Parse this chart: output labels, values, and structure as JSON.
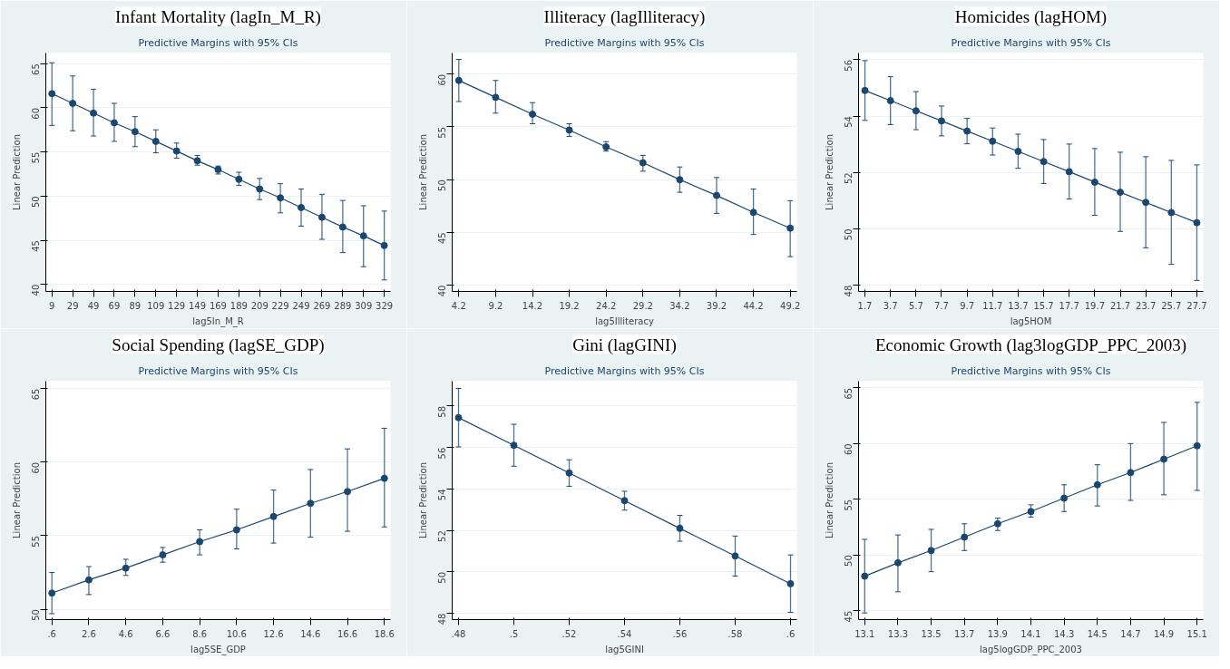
{
  "chart_data": [
    {
      "type": "line",
      "title": "Infant Mortality (lagIn_M_R)",
      "subtitle": "Predictive Margins with 95% CIs",
      "xlabel": "lag5In_M_R",
      "ylabel": "Linear Prediction",
      "marker": "circle",
      "grid": "y",
      "xlim": [
        3.1,
        335
      ],
      "xticks": [
        9,
        29,
        49,
        69,
        89,
        109,
        129,
        149,
        169,
        189,
        209,
        229,
        249,
        269,
        289,
        309,
        329
      ],
      "ylim": [
        39.2,
        66.2
      ],
      "yticks": [
        40,
        45,
        50,
        55,
        60,
        65
      ],
      "x": [
        9,
        29,
        49,
        69,
        89,
        109,
        129,
        149,
        169,
        189,
        209,
        229,
        249,
        269,
        289,
        309,
        329
      ],
      "series": [
        {
          "color": "#1a476f",
          "values": [
            61.6,
            60.5,
            59.4,
            58.3,
            57.3,
            56.2,
            55.1,
            54.0,
            53.0,
            51.9,
            50.8,
            49.8,
            48.7,
            47.6,
            46.5,
            45.5,
            44.4
          ],
          "errors": [
            [
              58.0,
              65.1
            ],
            [
              57.4,
              63.6
            ],
            [
              56.8,
              62.1
            ],
            [
              56.2,
              60.5
            ],
            [
              55.6,
              59.0
            ],
            [
              54.9,
              57.5
            ],
            [
              54.3,
              56.0
            ],
            [
              53.5,
              54.6
            ],
            [
              52.5,
              53.4
            ],
            [
              51.2,
              52.7
            ],
            [
              49.6,
              52.0
            ],
            [
              48.1,
              51.4
            ],
            [
              46.6,
              50.8
            ],
            [
              45.1,
              50.2
            ],
            [
              43.6,
              49.5
            ],
            [
              42.0,
              48.9
            ],
            [
              40.5,
              48.3
            ]
          ]
        }
      ]
    },
    {
      "type": "line",
      "title": "Illiteracy (lagIlliteracy)",
      "subtitle": "Predictive Margins with 95% CIs",
      "xlabel": "lag5Illiteracy",
      "ylabel": "Linear Prediction",
      "marker": "circle",
      "grid": "y",
      "xlim": [
        3.3,
        50.1
      ],
      "xticks": [
        4.2,
        9.2,
        14.2,
        19.2,
        24.2,
        29.2,
        34.2,
        39.2,
        44.2,
        49.2
      ],
      "ylim": [
        39.4,
        62.0
      ],
      "yticks": [
        40,
        45,
        50,
        55,
        60
      ],
      "x": [
        4.2,
        9.2,
        14.2,
        19.2,
        24.2,
        29.2,
        34.2,
        39.2,
        44.2,
        49.2
      ],
      "series": [
        {
          "color": "#1a476f",
          "values": [
            59.4,
            57.8,
            56.2,
            54.7,
            53.1,
            51.6,
            50.0,
            48.5,
            46.9,
            45.4
          ],
          "errors": [
            [
              57.4,
              61.4
            ],
            [
              56.3,
              59.4
            ],
            [
              55.3,
              57.3
            ],
            [
              54.1,
              55.3
            ],
            [
              52.7,
              53.6
            ],
            [
              50.8,
              52.3
            ],
            [
              48.8,
              51.2
            ],
            [
              46.8,
              50.2
            ],
            [
              44.8,
              49.1
            ],
            [
              42.7,
              48.0
            ]
          ]
        }
      ]
    },
    {
      "type": "line",
      "title": "Homicides (lagHOM)",
      "subtitle": "Predictive Margins with 95% CIs",
      "xlabel": "lag5HOM",
      "ylabel": "Linear Prediction",
      "marker": "circle",
      "grid": "y",
      "xlim": [
        1.2,
        28.2
      ],
      "xticks": [
        1.7,
        3.7,
        5.7,
        7.7,
        9.7,
        11.7,
        13.7,
        15.7,
        17.7,
        19.7,
        21.7,
        23.7,
        25.7,
        27.7
      ],
      "ylim": [
        47.78,
        56.24
      ],
      "yticks": [
        48,
        50,
        52,
        54,
        56
      ],
      "x": [
        1.7,
        3.7,
        5.7,
        7.7,
        9.7,
        11.7,
        13.7,
        15.7,
        17.7,
        19.7,
        21.7,
        23.7,
        25.7,
        27.7
      ],
      "series": [
        {
          "color": "#1a476f",
          "values": [
            54.91,
            54.55,
            54.19,
            53.83,
            53.47,
            53.11,
            52.75,
            52.39,
            52.03,
            51.66,
            51.3,
            50.94,
            50.58,
            50.22
          ],
          "errors": [
            [
              53.85,
              55.97
            ],
            [
              53.7,
              55.4
            ],
            [
              53.52,
              54.87
            ],
            [
              53.3,
              54.36
            ],
            [
              53.02,
              53.92
            ],
            [
              52.62,
              53.58
            ],
            [
              52.15,
              53.36
            ],
            [
              51.61,
              53.17
            ],
            [
              51.06,
              53.01
            ],
            [
              50.48,
              52.85
            ],
            [
              49.91,
              52.72
            ],
            [
              49.33,
              52.56
            ],
            [
              48.74,
              52.43
            ],
            [
              48.17,
              52.27
            ]
          ]
        }
      ]
    },
    {
      "type": "line",
      "title": "Social Spending (lagSE_GDP)",
      "subtitle": "Predictive Margins with 95% CIs",
      "xlabel": "lag5SE_GDP",
      "ylabel": "Linear Prediction",
      "marker": "circle",
      "grid": "y",
      "xlim": [
        0.27,
        18.93
      ],
      "xticks": [
        {
          "value": 0.6,
          "label": ".6"
        },
        2.6,
        4.6,
        6.6,
        8.6,
        10.6,
        12.6,
        14.6,
        16.6,
        18.6
      ],
      "ylim": [
        49.3,
        65.5
      ],
      "yticks": [
        50,
        55,
        60,
        65
      ],
      "x": [
        0.6,
        2.6,
        4.6,
        6.6,
        8.6,
        10.6,
        12.6,
        14.6,
        16.6,
        18.6
      ],
      "series": [
        {
          "color": "#1a476f",
          "values": [
            51.1,
            52.0,
            52.8,
            53.7,
            54.6,
            55.4,
            56.3,
            57.2,
            58.0,
            58.9
          ],
          "errors": [
            [
              49.7,
              52.5
            ],
            [
              51.0,
              52.9
            ],
            [
              52.3,
              53.4
            ],
            [
              53.2,
              54.2
            ],
            [
              53.7,
              55.4
            ],
            [
              54.1,
              56.8
            ],
            [
              54.5,
              58.1
            ],
            [
              54.9,
              59.5
            ],
            [
              55.3,
              60.9
            ],
            [
              55.6,
              62.3
            ]
          ]
        }
      ]
    },
    {
      "type": "line",
      "title": "Gini (lagGINI)",
      "subtitle": "Predictive Margins with 95% CIs",
      "xlabel": "lag5GINI",
      "ylabel": "Linear Prediction",
      "marker": "circle",
      "grid": "y",
      "xlim": [
        0.4777,
        0.6023
      ],
      "xticks": [
        {
          "value": 0.48,
          "label": ".48"
        },
        {
          "value": 0.5,
          "label": ".5"
        },
        {
          "value": 0.52,
          "label": ".52"
        },
        {
          "value": 0.54,
          "label": ".54"
        },
        {
          "value": 0.56,
          "label": ".56"
        },
        {
          "value": 0.58,
          "label": ".58"
        },
        {
          "value": 0.6,
          "label": ".6"
        }
      ],
      "ylim": [
        47.7,
        59.2
      ],
      "yticks": [
        48,
        50,
        52,
        54,
        56,
        58
      ],
      "x": [
        0.48,
        0.5,
        0.52,
        0.54,
        0.56,
        0.58,
        0.6
      ],
      "series": [
        {
          "color": "#1a476f",
          "values": [
            57.44,
            56.11,
            54.77,
            53.44,
            52.1,
            50.77,
            49.43
          ],
          "errors": [
            [
              56.03,
              58.85
            ],
            [
              55.1,
              57.12
            ],
            [
              54.13,
              55.41
            ],
            [
              52.98,
              53.89
            ],
            [
              51.48,
              52.73
            ],
            [
              49.8,
              51.73
            ],
            [
              48.05,
              50.82
            ]
          ]
        }
      ]
    },
    {
      "type": "line",
      "title": "Economic Growth (lag3logGDP_PPC_2003)",
      "subtitle": "Predictive Margins with 95% CIs",
      "xlabel": "lag5logGDP_PPC_2003",
      "ylabel": "Linear Prediction",
      "marker": "circle",
      "grid": "y",
      "xlim": [
        13.063,
        15.137
      ],
      "xticks": [
        13.1,
        13.3,
        13.5,
        13.7,
        13.9,
        14.1,
        14.3,
        14.5,
        14.7,
        14.9,
        15.1
      ],
      "ylim": [
        44.2,
        65.6
      ],
      "yticks": [
        45,
        50,
        55,
        60,
        65
      ],
      "x": [
        13.1,
        13.3,
        13.5,
        13.7,
        13.9,
        14.1,
        14.3,
        14.5,
        14.7,
        14.9,
        15.1
      ],
      "series": [
        {
          "color": "#1a476f",
          "values": [
            48.1,
            49.3,
            50.4,
            51.6,
            52.8,
            53.9,
            55.1,
            56.3,
            57.4,
            58.6,
            59.8
          ],
          "errors": [
            [
              44.8,
              51.4
            ],
            [
              46.7,
              51.8
            ],
            [
              48.5,
              52.3
            ],
            [
              50.4,
              52.8
            ],
            [
              52.2,
              53.3
            ],
            [
              53.4,
              54.5
            ],
            [
              53.9,
              56.3
            ],
            [
              54.4,
              58.1
            ],
            [
              54.9,
              60.0
            ],
            [
              55.4,
              61.9
            ],
            [
              55.8,
              63.7
            ]
          ]
        }
      ]
    }
  ]
}
